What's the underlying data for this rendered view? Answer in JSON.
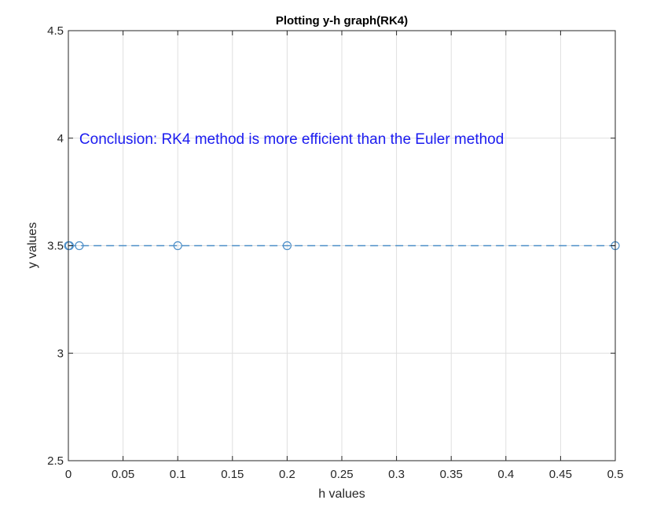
{
  "chart_data": {
    "type": "line",
    "title": "Plotting y-h graph(RK4)",
    "xlabel": "h values",
    "ylabel": "y values",
    "xlim": [
      0,
      0.5
    ],
    "ylim": [
      2.5,
      4.5
    ],
    "grid": true,
    "xticks": [
      0,
      0.05,
      0.1,
      0.15,
      0.2,
      0.25,
      0.3,
      0.35,
      0.4,
      0.45,
      0.5
    ],
    "xtick_labels": [
      "0",
      "0.05",
      "0.1",
      "0.15",
      "0.2",
      "0.25",
      "0.3",
      "0.35",
      "0.4",
      "0.45",
      "0.5"
    ],
    "yticks": [
      2.5,
      3,
      3.5,
      4,
      4.5
    ],
    "ytick_labels": [
      "2.5",
      "3",
      "3.5",
      "4",
      "4.5"
    ],
    "series": [
      {
        "line_style": "dashed",
        "marker": "open-circle",
        "color": "#4d8fc8",
        "x": [
          0.0001,
          0.001,
          0.01,
          0.1,
          0.2,
          0.5
        ],
        "y": [
          3.5,
          3.5,
          3.5,
          3.5,
          3.5,
          3.5
        ]
      }
    ],
    "annotations": [
      {
        "text": "Conclusion: RK4 method is more efficient than the Euler method",
        "x": 0.01,
        "y": 4,
        "color": "#1c1cf0"
      }
    ]
  }
}
